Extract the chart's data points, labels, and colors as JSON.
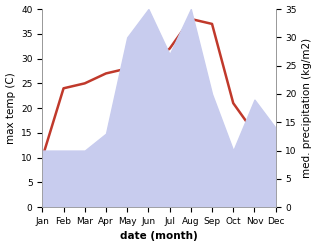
{
  "months": [
    "Jan",
    "Feb",
    "Mar",
    "Apr",
    "May",
    "Jun",
    "Jul",
    "Aug",
    "Sep",
    "Oct",
    "Nov",
    "Dec"
  ],
  "temperature": [
    10,
    24,
    25,
    27,
    28,
    29,
    32,
    38,
    37,
    21,
    15,
    13
  ],
  "precipitation": [
    10,
    10,
    10,
    13,
    30,
    35,
    27,
    35,
    20,
    10,
    19,
    14
  ],
  "temp_ylim": [
    0,
    40
  ],
  "precip_ylim": [
    0,
    35
  ],
  "temp_color": "#c0392b",
  "precip_fill_color": "#c8ccee",
  "xlabel": "date (month)",
  "ylabel_left": "max temp (C)",
  "ylabel_right": "med. precipitation (kg/m2)",
  "background_color": "#ffffff",
  "temp_linewidth": 1.8,
  "label_fontsize": 7.5,
  "tick_fontsize": 6.5
}
